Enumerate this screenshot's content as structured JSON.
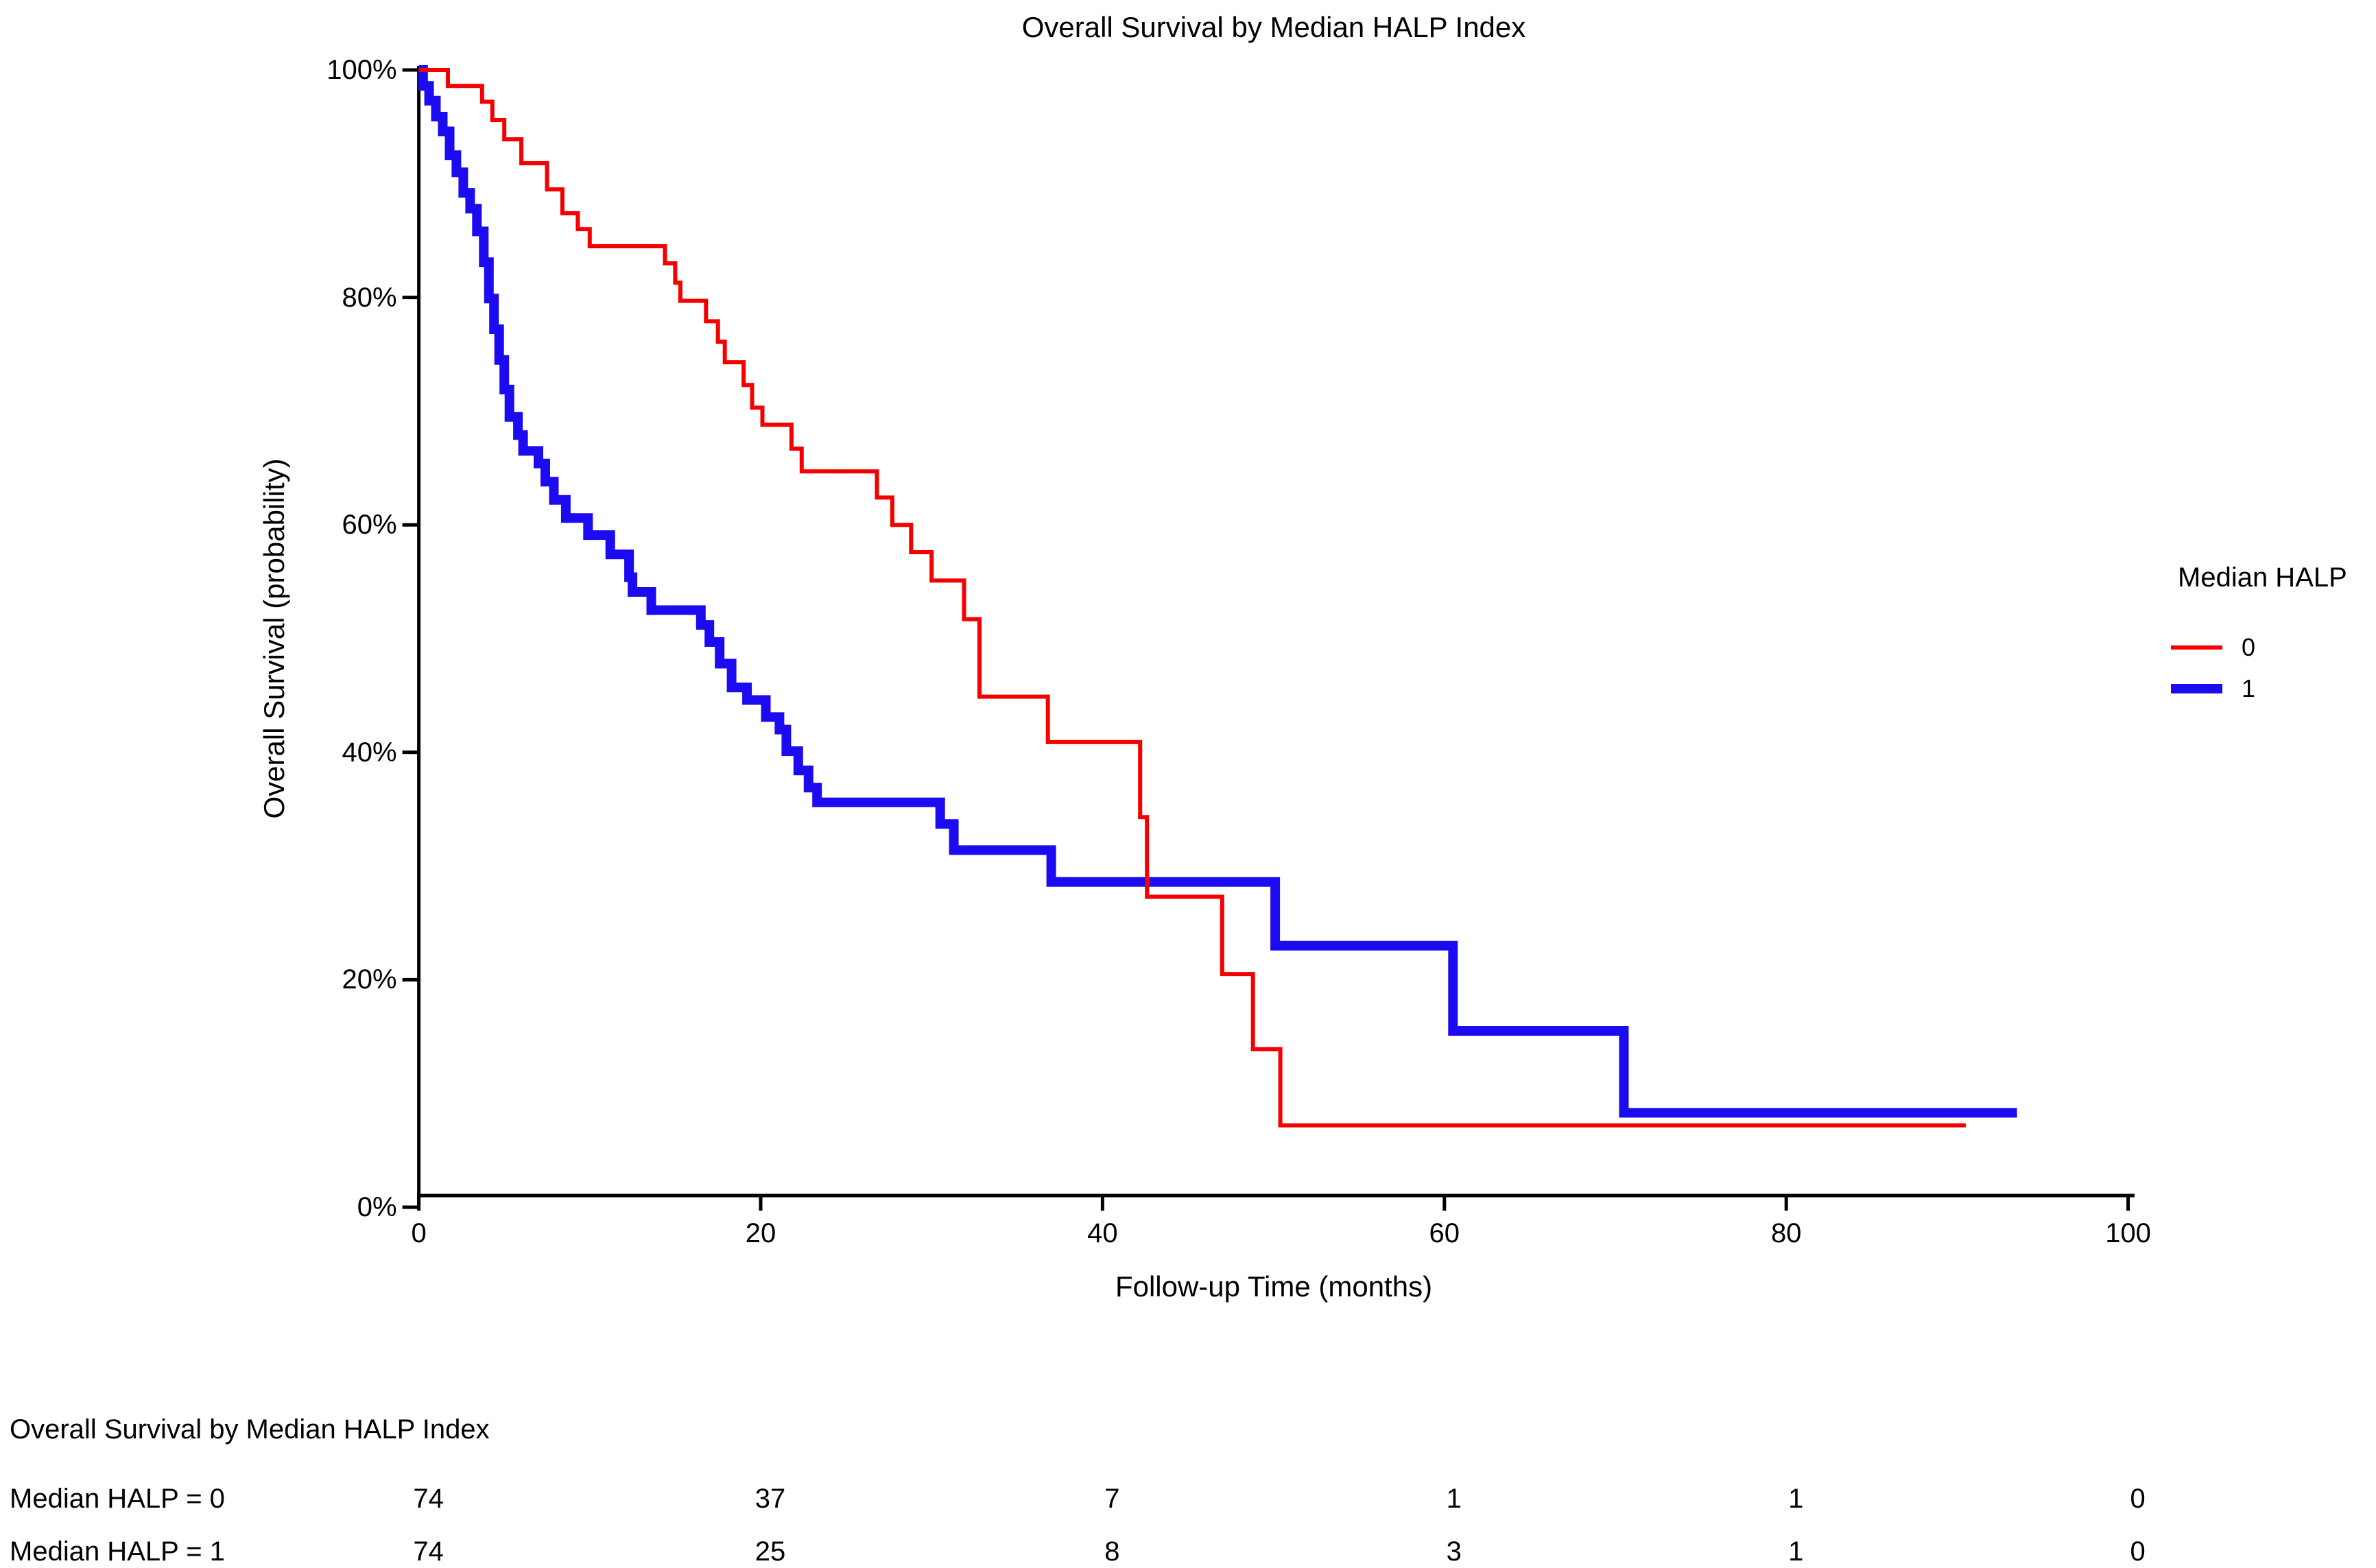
{
  "title": "Overall Survival by Median HALP Index",
  "axes": {
    "x": {
      "label": "Follow-up Time (months)",
      "ticks": [
        "0",
        "20",
        "40",
        "60",
        "80",
        "100"
      ],
      "tick_values": [
        0,
        20,
        40,
        60,
        80,
        100
      ],
      "range": [
        0,
        100
      ]
    },
    "y": {
      "label": "Overall Survival (probability)",
      "ticks": [
        "100%",
        "80%",
        "60%",
        "40%",
        "20%",
        "0%"
      ],
      "tick_values": [
        100,
        80,
        60,
        40,
        20,
        0
      ],
      "range": [
        0,
        100
      ]
    }
  },
  "legend": {
    "title": "Median HALP",
    "items": [
      {
        "label": "0",
        "color": "#f40000"
      },
      {
        "label": "1",
        "color": "#1c0af0"
      }
    ]
  },
  "risk_table": {
    "title": "Overall Survival by Median HALP Index",
    "time_points": [
      0,
      20,
      40,
      60,
      80,
      100
    ],
    "rows": [
      {
        "label": "Median HALP = 0",
        "counts": [
          74,
          37,
          7,
          1,
          1,
          0
        ]
      },
      {
        "label": "Median HALP = 1",
        "counts": [
          74,
          25,
          8,
          3,
          1,
          0
        ]
      }
    ]
  },
  "chart_data": {
    "type": "line",
    "subtype": "kaplan_meier_step",
    "title": "Overall Survival by Median HALP Index",
    "xlabel": "Follow-up Time (months)",
    "ylabel": "Overall Survival (probability)",
    "xlim": [
      0,
      100
    ],
    "ylim_percent": [
      0,
      100
    ],
    "grid": false,
    "legend_position": "right",
    "series": [
      {
        "name": "Median HALP = 0",
        "color": "#f40000",
        "stroke_px": 6,
        "end_time": 90.5,
        "steps": [
          [
            0,
            100
          ],
          [
            1.7,
            98.6
          ],
          [
            3.7,
            97.2
          ],
          [
            4.3,
            95.6
          ],
          [
            5.0,
            93.9
          ],
          [
            6.0,
            91.8
          ],
          [
            7.5,
            89.5
          ],
          [
            8.4,
            87.4
          ],
          [
            9.3,
            86.0
          ],
          [
            10.0,
            84.5
          ],
          [
            14.4,
            83.0
          ],
          [
            15.0,
            81.3
          ],
          [
            15.3,
            79.7
          ],
          [
            16.8,
            77.9
          ],
          [
            17.5,
            76.1
          ],
          [
            17.9,
            74.3
          ],
          [
            19.0,
            72.3
          ],
          [
            19.5,
            70.3
          ],
          [
            20.1,
            68.8
          ],
          [
            21.8,
            66.7
          ],
          [
            22.4,
            64.7
          ],
          [
            26.8,
            62.4
          ],
          [
            27.7,
            60.0
          ],
          [
            28.8,
            57.6
          ],
          [
            30.0,
            55.1
          ],
          [
            31.9,
            51.7
          ],
          [
            32.8,
            44.9
          ],
          [
            36.8,
            40.9
          ],
          [
            42.2,
            34.3
          ],
          [
            42.6,
            27.3
          ],
          [
            47.0,
            20.5
          ],
          [
            48.8,
            13.9
          ],
          [
            50.4,
            7.2
          ]
        ]
      },
      {
        "name": "Median HALP = 1",
        "color": "#1c0af0",
        "stroke_px": 14,
        "end_time": 93.5,
        "steps": [
          [
            0,
            100
          ],
          [
            0.25,
            98.6
          ],
          [
            0.6,
            97.3
          ],
          [
            1.0,
            95.9
          ],
          [
            1.4,
            94.6
          ],
          [
            1.8,
            92.5
          ],
          [
            2.2,
            91.0
          ],
          [
            2.6,
            89.2
          ],
          [
            3.0,
            87.8
          ],
          [
            3.4,
            85.8
          ],
          [
            3.8,
            83.1
          ],
          [
            4.1,
            79.9
          ],
          [
            4.4,
            77.2
          ],
          [
            4.7,
            74.5
          ],
          [
            5.0,
            71.9
          ],
          [
            5.3,
            69.5
          ],
          [
            5.8,
            67.9
          ],
          [
            6.1,
            66.5
          ],
          [
            7.0,
            65.4
          ],
          [
            7.4,
            63.8
          ],
          [
            7.9,
            62.2
          ],
          [
            8.6,
            60.6
          ],
          [
            9.9,
            59.1
          ],
          [
            11.2,
            57.4
          ],
          [
            12.3,
            55.4
          ],
          [
            12.5,
            54.1
          ],
          [
            13.6,
            52.5
          ],
          [
            16.5,
            51.2
          ],
          [
            17.0,
            49.7
          ],
          [
            17.6,
            47.8
          ],
          [
            18.3,
            45.7
          ],
          [
            19.2,
            44.6
          ],
          [
            20.3,
            43.1
          ],
          [
            21.1,
            42.0
          ],
          [
            21.5,
            40.1
          ],
          [
            22.2,
            38.4
          ],
          [
            22.8,
            36.9
          ],
          [
            23.3,
            35.6
          ],
          [
            30.5,
            33.7
          ],
          [
            31.3,
            31.4
          ],
          [
            37.0,
            28.6
          ],
          [
            50.1,
            23.0
          ],
          [
            60.5,
            15.5
          ],
          [
            70.5,
            8.3
          ]
        ]
      }
    ]
  }
}
